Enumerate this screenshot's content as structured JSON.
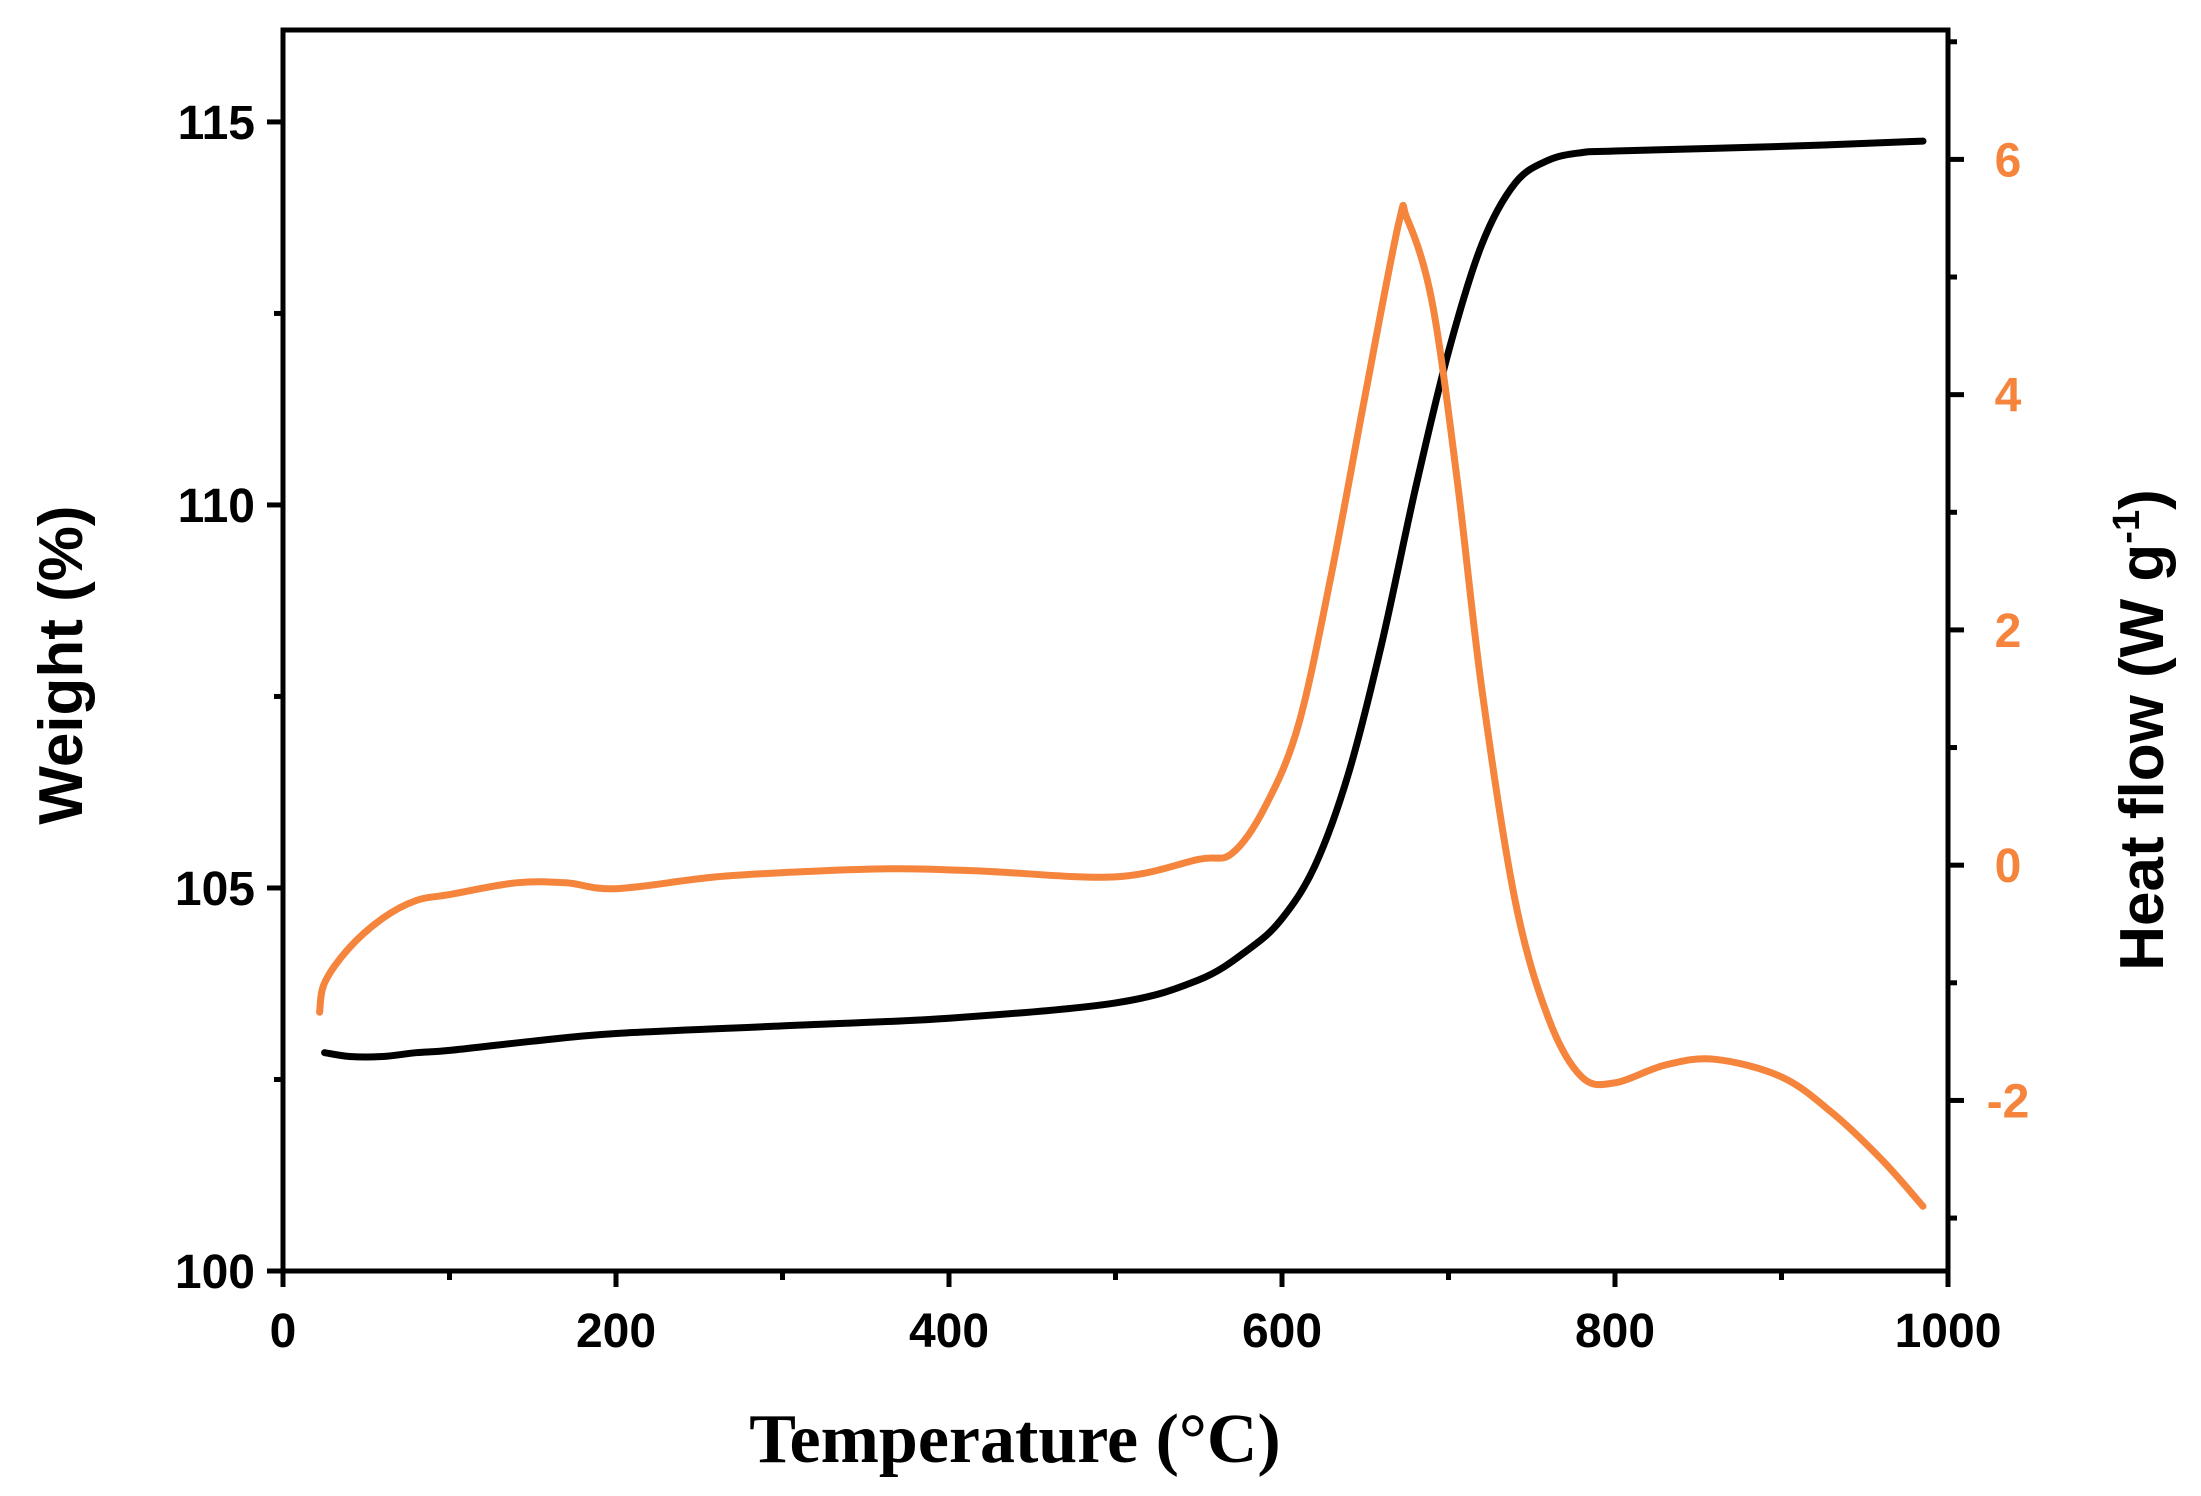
{
  "chart_data": {
    "type": "line",
    "xlabel": "Temperature (°C)",
    "ylabel_left": "Weight (%)",
    "ylabel_right": "Heat flow (W g",
    "ylabel_right_sup": "-1",
    "ylabel_right_close": ")",
    "xlim": [
      0,
      1000
    ],
    "ylim_left": [
      100,
      116.2
    ],
    "ylim_right": [
      -3.45,
      7.1
    ],
    "x_ticks": [
      0,
      200,
      400,
      600,
      800,
      1000
    ],
    "x_tick_labels": [
      "0",
      "200",
      "400",
      "600",
      "800",
      "1000"
    ],
    "y_left_ticks": [
      100,
      105,
      110,
      115
    ],
    "y_left_tick_labels": [
      "100",
      "105",
      "110",
      "115"
    ],
    "y_right_ticks": [
      -2,
      0,
      2,
      4,
      6
    ],
    "y_right_tick_labels": [
      "-2",
      "0",
      "2",
      "4",
      "6"
    ],
    "grid": false,
    "series": [
      {
        "axis": "left",
        "color": "#000000",
        "points": [
          [
            25,
            102.85
          ],
          [
            40,
            102.8
          ],
          [
            60,
            102.8
          ],
          [
            80,
            102.85
          ],
          [
            100,
            102.88
          ],
          [
            150,
            103.0
          ],
          [
            200,
            103.1
          ],
          [
            300,
            103.2
          ],
          [
            400,
            103.3
          ],
          [
            500,
            103.5
          ],
          [
            550,
            103.8
          ],
          [
            580,
            104.2
          ],
          [
            600,
            104.6
          ],
          [
            620,
            105.3
          ],
          [
            640,
            106.5
          ],
          [
            660,
            108.2
          ],
          [
            680,
            110.2
          ],
          [
            700,
            112.0
          ],
          [
            720,
            113.4
          ],
          [
            740,
            114.2
          ],
          [
            760,
            114.5
          ],
          [
            780,
            114.6
          ],
          [
            800,
            114.62
          ],
          [
            900,
            114.68
          ],
          [
            985,
            114.75
          ]
        ]
      },
      {
        "axis": "right",
        "color": "#F5843C",
        "points": [
          [
            22,
            -1.25
          ],
          [
            25,
            -1.0
          ],
          [
            40,
            -0.7
          ],
          [
            60,
            -0.45
          ],
          [
            80,
            -0.3
          ],
          [
            100,
            -0.25
          ],
          [
            140,
            -0.15
          ],
          [
            170,
            -0.15
          ],
          [
            200,
            -0.2
          ],
          [
            260,
            -0.1
          ],
          [
            320,
            -0.05
          ],
          [
            370,
            -0.03
          ],
          [
            420,
            -0.05
          ],
          [
            500,
            -0.1
          ],
          [
            550,
            0.05
          ],
          [
            570,
            0.1
          ],
          [
            590,
            0.5
          ],
          [
            610,
            1.2
          ],
          [
            630,
            2.5
          ],
          [
            650,
            4.0
          ],
          [
            670,
            5.45
          ],
          [
            675,
            5.5
          ],
          [
            690,
            4.8
          ],
          [
            705,
            3.3
          ],
          [
            720,
            1.5
          ],
          [
            740,
            -0.3
          ],
          [
            760,
            -1.3
          ],
          [
            780,
            -1.8
          ],
          [
            800,
            -1.85
          ],
          [
            830,
            -1.7
          ],
          [
            860,
            -1.65
          ],
          [
            900,
            -1.8
          ],
          [
            930,
            -2.1
          ],
          [
            960,
            -2.5
          ],
          [
            985,
            -2.9
          ]
        ]
      }
    ]
  }
}
